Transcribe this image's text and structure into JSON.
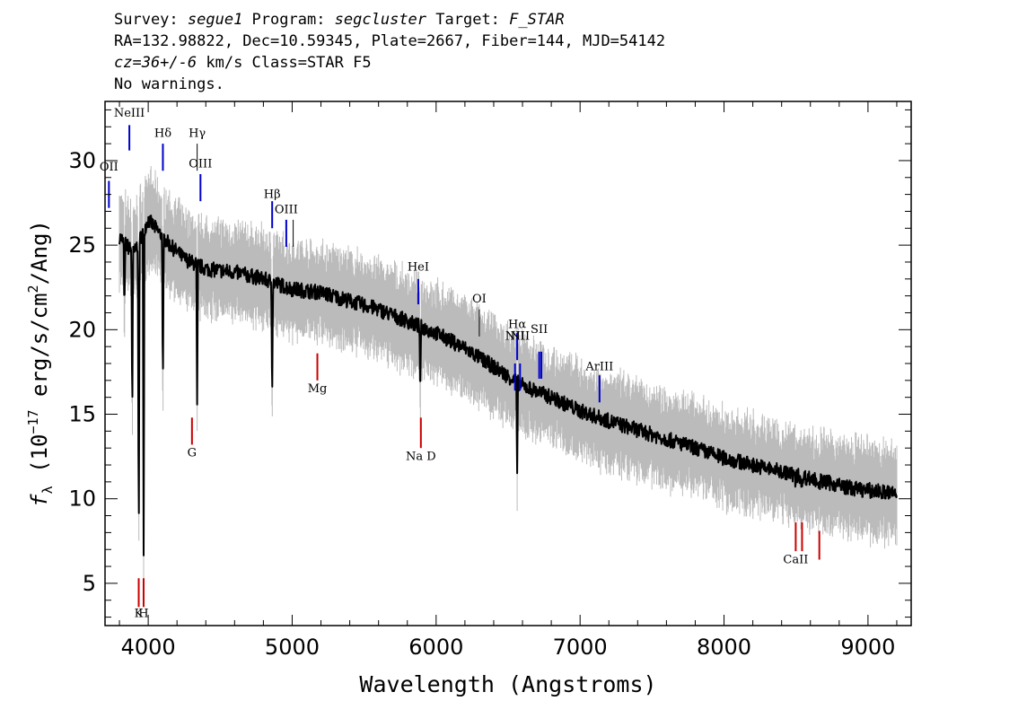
{
  "header": {
    "line1": {
      "survey_label": "Survey: ",
      "survey": "segue1",
      "program_label": " Program: ",
      "program": "segcluster",
      "target_label": " Target: ",
      "target": "F_STAR"
    },
    "line2": "RA=132.98822, Dec=10.59345, Plate=2667, Fiber=144, MJD=54142",
    "line3": {
      "cz": "cz=36+/-6",
      "rest": " km/s Class=STAR F5"
    },
    "line4": "No warnings."
  },
  "colors": {
    "flux": "#000000",
    "noise": "#bbbbbb",
    "emission_line": "#0000cc",
    "absorption_line": "#cc0000",
    "annotation_line": "#000000"
  },
  "chart_data": {
    "type": "line",
    "xlabel": "Wavelength (Angstroms)",
    "ylabel_parts": {
      "f": "f",
      "sub": "λ",
      "a": " (10",
      "exp1": "−17",
      "b": " erg/s/cm",
      "exp2": "2",
      "c": "/Ang)"
    },
    "xlim": [
      3700,
      9300
    ],
    "ylim": [
      2.5,
      33.5
    ],
    "xticks": [
      4000,
      5000,
      6000,
      7000,
      8000,
      9000
    ],
    "yticks": [
      5,
      10,
      15,
      20,
      25,
      30
    ],
    "grid": false,
    "series": [
      {
        "values": [
          [
            3800,
            25.5
          ],
          [
            3850,
            25.0
          ],
          [
            3900,
            24.5
          ],
          [
            3950,
            25.5
          ],
          [
            4000,
            26.5
          ],
          [
            4050,
            26.0
          ],
          [
            4150,
            25.0
          ],
          [
            4250,
            24.2
          ],
          [
            4400,
            23.6
          ],
          [
            4600,
            23.4
          ],
          [
            4800,
            23.0
          ],
          [
            5000,
            22.4
          ],
          [
            5200,
            22.2
          ],
          [
            5400,
            21.7
          ],
          [
            5600,
            21.2
          ],
          [
            5800,
            20.5
          ],
          [
            6000,
            19.8
          ],
          [
            6200,
            18.9
          ],
          [
            6400,
            17.8
          ],
          [
            6600,
            16.7
          ],
          [
            6800,
            16.0
          ],
          [
            7000,
            15.2
          ],
          [
            7200,
            14.6
          ],
          [
            7500,
            13.8
          ],
          [
            7800,
            13.0
          ],
          [
            8000,
            12.4
          ],
          [
            8300,
            11.8
          ],
          [
            8600,
            11.2
          ],
          [
            8900,
            10.6
          ],
          [
            9200,
            10.3
          ]
        ]
      }
    ],
    "absorption_features": [
      {
        "x": 3835,
        "y": 21.0
      },
      {
        "x": 3889,
        "y": 14.5
      },
      {
        "x": 3934,
        "y": 5.8
      },
      {
        "x": 3968,
        "y": 6.3
      },
      {
        "x": 4102,
        "y": 15.7
      },
      {
        "x": 4340,
        "y": 15.3
      },
      {
        "x": 4861,
        "y": 15.8
      },
      {
        "x": 5890,
        "y": 15.8
      },
      {
        "x": 6563,
        "y": 11.2
      },
      {
        "x": 8498,
        "y": 10.6
      },
      {
        "x": 8542,
        "y": 10.2
      },
      {
        "x": 8662,
        "y": 10.5
      }
    ],
    "line_markers": [
      {
        "label": "OII",
        "x": 3727,
        "type": "emission",
        "y0": 27.2,
        "y1": 28.8,
        "label_y": 29.4
      },
      {
        "label": "NeIII",
        "x": 3869,
        "type": "emission",
        "y0": 30.6,
        "y1": 32.1,
        "label_y": 32.6
      },
      {
        "label": "Hδ",
        "x": 4102,
        "type": "emission",
        "y0": 29.4,
        "y1": 31.0,
        "label_y": 31.4
      },
      {
        "label": "Hγ",
        "x": 4340,
        "type": "annotation",
        "y0": 29.4,
        "y1": 31.0,
        "label_y": 31.4
      },
      {
        "label": "OIII",
        "x": 4363,
        "type": "emission",
        "y0": 27.6,
        "y1": 29.2,
        "label_y": 29.6
      },
      {
        "label": "Hβ",
        "x": 4861,
        "type": "emission",
        "y0": 26.0,
        "y1": 27.6,
        "label_y": 27.8
      },
      {
        "label": "OIII",
        "x": 4959,
        "type": "emission",
        "y0": 24.9,
        "y1": 26.5,
        "label_y": 26.9
      },
      {
        "label": "",
        "x": 5007,
        "type": "annotation",
        "y0": 24.9,
        "y1": 26.5,
        "label_y": 26.9
      },
      {
        "label": "HeI",
        "x": 5876,
        "type": "emission",
        "y0": 21.5,
        "y1": 23.0,
        "label_y": 23.5
      },
      {
        "label": "OI",
        "x": 6300,
        "type": "annotation",
        "y0": 19.6,
        "y1": 21.2,
        "label_y": 21.6
      },
      {
        "label": "NII",
        "x": 6548,
        "type": "emission",
        "y0": 16.4,
        "y1": 18.0,
        "label_y": 19.4
      },
      {
        "label": "Hα",
        "x": 6563,
        "type": "emission",
        "y0": 18.2,
        "y1": 19.8,
        "label_y": 20.1
      },
      {
        "label": "NII",
        "x": 6583,
        "type": "emission",
        "y0": 16.4,
        "y1": 18.0,
        "label_y": 19.4
      },
      {
        "label": "SII",
        "x": 6716,
        "type": "emission",
        "y0": 17.1,
        "y1": 18.7,
        "label_y": 19.8
      },
      {
        "label": "",
        "x": 6731,
        "type": "emission",
        "y0": 17.1,
        "y1": 18.7,
        "label_y": 19.8
      },
      {
        "label": "ArIII",
        "x": 7135,
        "type": "emission",
        "y0": 15.7,
        "y1": 17.3,
        "label_y": 17.6
      },
      {
        "label": "K",
        "x": 3934,
        "type": "absorption",
        "y0": 3.6,
        "y1": 5.3,
        "label_y": 3.0
      },
      {
        "label": "H",
        "x": 3968,
        "type": "absorption",
        "y0": 3.6,
        "y1": 5.3,
        "label_y": 3.0
      },
      {
        "label": "G",
        "x": 4304,
        "type": "absorption",
        "y0": 13.2,
        "y1": 14.8,
        "label_y": 12.5
      },
      {
        "label": "Mg",
        "x": 5175,
        "type": "absorption",
        "y0": 17.0,
        "y1": 18.6,
        "label_y": 16.3
      },
      {
        "label": "Na D",
        "x": 5894,
        "type": "absorption",
        "y0": 13.0,
        "y1": 14.8,
        "label_y": 12.3
      },
      {
        "label": "CaII",
        "x": 8498,
        "type": "absorption",
        "y0": 6.9,
        "y1": 8.6,
        "label_y": 6.2
      },
      {
        "label": "",
        "x": 8542,
        "type": "absorption",
        "y0": 6.9,
        "y1": 8.6,
        "label_y": 6.2
      },
      {
        "label": "",
        "x": 8662,
        "type": "absorption",
        "y0": 6.4,
        "y1": 8.1,
        "label_y": 6.2
      }
    ]
  }
}
